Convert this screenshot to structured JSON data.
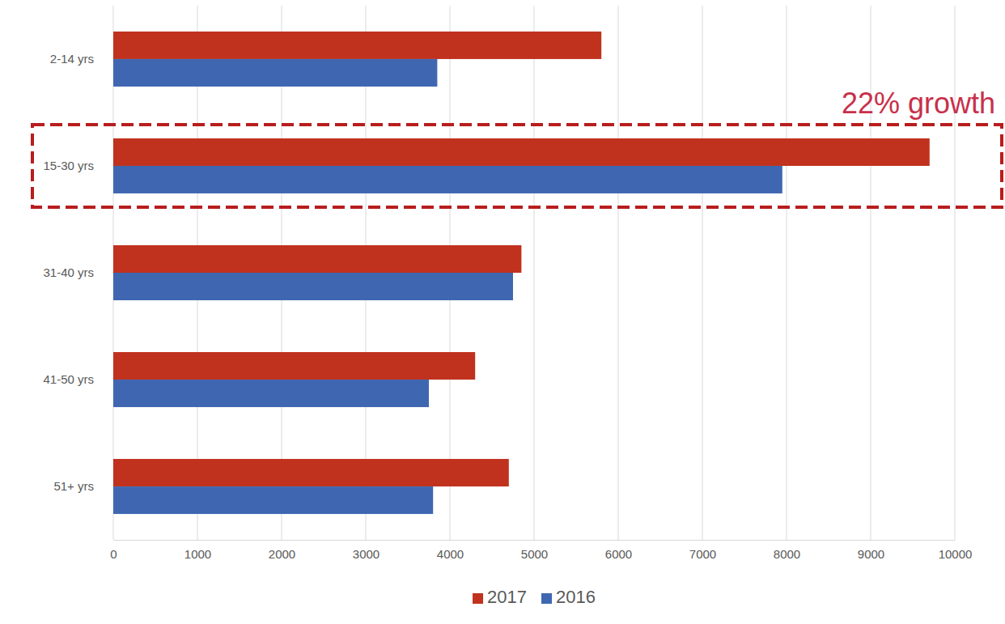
{
  "chart_data": {
    "type": "bar",
    "orientation": "horizontal",
    "categories": [
      "2-14 yrs",
      "15-30 yrs",
      "31-40 yrs",
      "41-50 yrs",
      "51+ yrs"
    ],
    "series": [
      {
        "name": "2017",
        "color": "#c0321e",
        "values": [
          5800,
          9700,
          4850,
          4300,
          4700
        ]
      },
      {
        "name": "2016",
        "color": "#3f67b1",
        "values": [
          3850,
          7950,
          4750,
          3750,
          3800
        ]
      }
    ],
    "xlim": [
      0,
      10000
    ],
    "xticks": [
      0,
      1000,
      2000,
      3000,
      4000,
      5000,
      6000,
      7000,
      8000,
      9000,
      10000
    ],
    "grid": true,
    "legend": "bottom",
    "annotations": [
      {
        "text": "22% growth",
        "category": "15-30 yrs"
      }
    ]
  }
}
